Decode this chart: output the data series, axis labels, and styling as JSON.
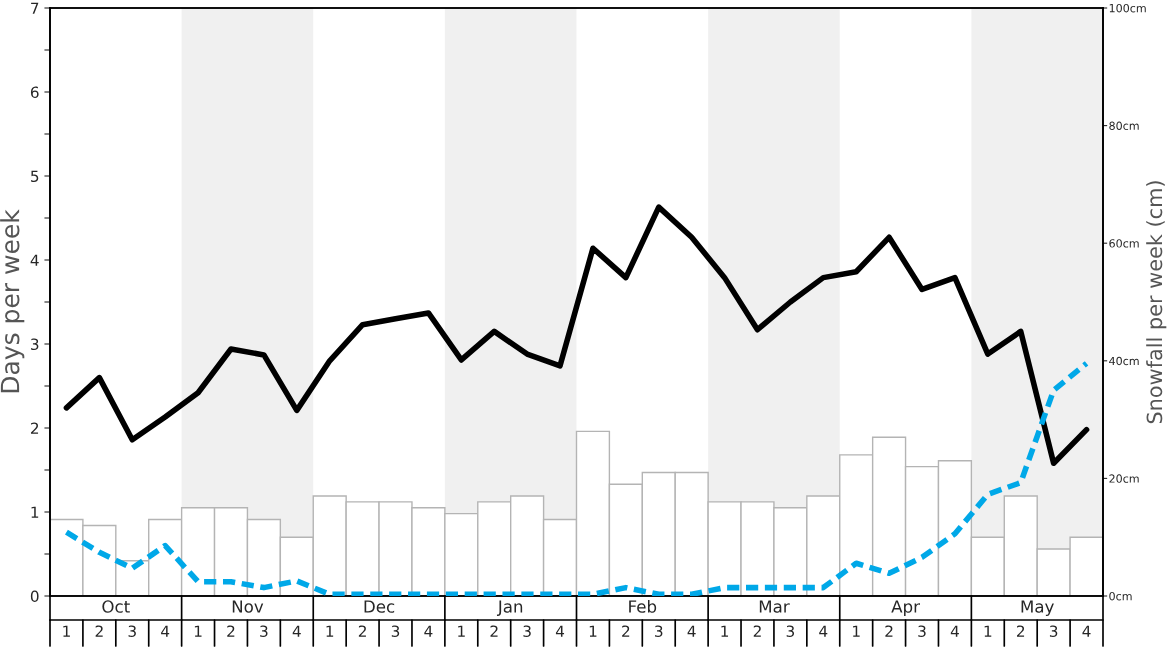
{
  "chart_data": {
    "type": "bar",
    "ylabel": "Days per week",
    "y2label": "Snowfall per week (cm)",
    "categories": [
      "1",
      "2",
      "3",
      "4",
      "1",
      "2",
      "3",
      "4",
      "1",
      "2",
      "3",
      "4",
      "1",
      "2",
      "3",
      "4",
      "1",
      "2",
      "3",
      "4",
      "1",
      "2",
      "3",
      "4",
      "1",
      "2",
      "3",
      "4",
      "1",
      "2",
      "3",
      "4"
    ],
    "series": [
      {
        "axis": "y2",
        "color": "#ffffff",
        "values": [
          13,
          12,
          6,
          13,
          15,
          15,
          13,
          10,
          17,
          16,
          16,
          15,
          14,
          16,
          17,
          13,
          28,
          19,
          21,
          21,
          16,
          16,
          15,
          17,
          24,
          27,
          22,
          23,
          10,
          17,
          8,
          10
        ]
      },
      {
        "type": "line",
        "axis": "y",
        "color": "#000000",
        "line_style": "solid",
        "values": [
          2.24,
          2.6,
          1.86,
          2.13,
          2.42,
          2.94,
          2.87,
          2.21,
          2.8,
          3.23,
          3.3,
          3.37,
          2.81,
          3.15,
          2.88,
          2.74,
          4.14,
          3.79,
          4.63,
          4.27,
          3.79,
          3.17,
          3.5,
          3.79,
          3.86,
          4.27,
          3.65,
          3.79,
          2.88,
          3.15,
          1.58,
          1.98
        ]
      },
      {
        "type": "line",
        "axis": "y",
        "color": "#00a8e8",
        "line_style": "dashed",
        "values": [
          0.76,
          0.52,
          0.33,
          0.6,
          0.17,
          0.17,
          0.1,
          0.18,
          0.02,
          0.02,
          0.02,
          0.02,
          0.02,
          0.02,
          0.02,
          0.02,
          0.02,
          0.1,
          0.02,
          0.02,
          0.1,
          0.1,
          0.1,
          0.1,
          0.39,
          0.27,
          0.46,
          0.74,
          1.21,
          1.35,
          2.45,
          2.77
        ]
      }
    ],
    "annotations": [
      "Oct",
      "Nov",
      "Dec",
      "Jan",
      "Feb",
      "Mar",
      "Apr",
      "May"
    ],
    "ylim": [
      0,
      7
    ],
    "yticks": [
      0,
      {
        "value": 0.5,
        "label": null
      },
      1,
      {
        "value": 1.5,
        "label": null
      },
      2,
      {
        "value": 2.5,
        "label": null
      },
      3,
      {
        "value": 3.5,
        "label": null
      },
      4,
      {
        "value": 4.5,
        "label": null
      },
      5,
      {
        "value": 5.5,
        "label": null
      },
      6,
      {
        "value": 6.5,
        "label": null
      },
      7
    ],
    "y2lim": [
      0,
      100
    ],
    "y2ticks": [
      {
        "value": 0,
        "label": "0cm"
      },
      {
        "value": 20,
        "label": "20cm"
      },
      {
        "value": 40,
        "label": "40cm"
      },
      {
        "value": 60,
        "label": "60cm"
      },
      {
        "value": 80,
        "label": "80cm"
      },
      {
        "value": 100,
        "label": "100cm"
      }
    ],
    "grid": false,
    "legend": false
  }
}
